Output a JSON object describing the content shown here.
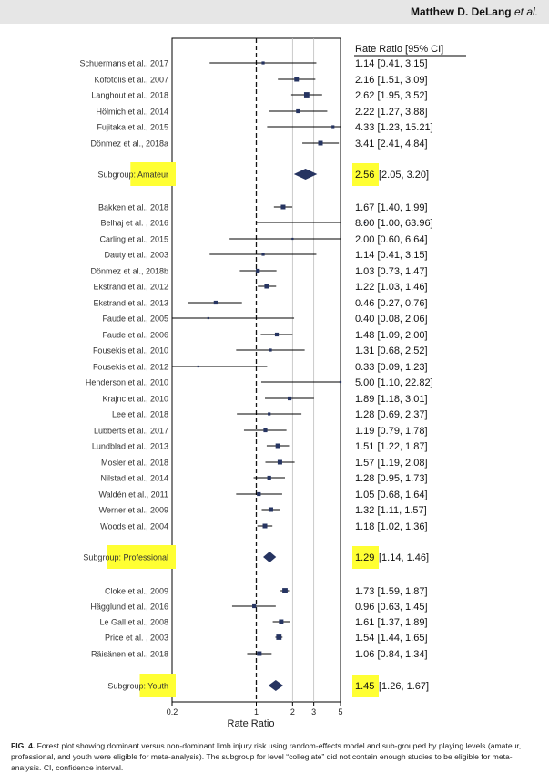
{
  "header": {
    "author": "Matthew D. DeLang",
    "etal": "et al."
  },
  "caption": {
    "label": "FIG. 4.",
    "text": "Forest plot showing dominant versus non-dominant limb injury risk using random-effects model and sub-grouped by playing levels (amateur, professional, and youth were eligible for meta-analysis). The subgroup for level “collegiate” did not contain enough studies to be eligible for meta-analysis. CI, confidence interval."
  },
  "colors": {
    "marker": "#263461",
    "highlight": "#ffff33",
    "refline": "#111111",
    "grid": "#bdbdbd"
  },
  "chart_data": {
    "type": "forest",
    "xlabel": "Rate Ratio",
    "xscale": "log",
    "xlim": [
      0.2,
      5
    ],
    "x_ticks": [
      0.2,
      1,
      2,
      3,
      5
    ],
    "x_tick_labels": [
      "0.2",
      "1",
      "2",
      "3",
      "5"
    ],
    "reference_line": 1,
    "column_header": "Rate Ratio [95% CI]",
    "rows": [
      {
        "kind": "study",
        "label": "Schuermans et al., 2017",
        "rr": 1.14,
        "lo": 0.41,
        "hi": 3.15,
        "text": "1.14 [0.41, 3.15]",
        "weight": 1
      },
      {
        "kind": "study",
        "label": "Kofotolis et al., 2007",
        "rr": 2.16,
        "lo": 1.51,
        "hi": 3.09,
        "text": "2.16 [1.51, 3.09]",
        "weight": 3
      },
      {
        "kind": "study",
        "label": "Langhout et al., 2018",
        "rr": 2.62,
        "lo": 1.95,
        "hi": 3.52,
        "text": "2.62 [1.95, 3.52]",
        "weight": 4
      },
      {
        "kind": "study",
        "label": "Hölmich et al., 2014",
        "rr": 2.22,
        "lo": 1.27,
        "hi": 3.88,
        "text": "2.22 [1.27, 3.88]",
        "weight": 2
      },
      {
        "kind": "study",
        "label": "Fujitaka et al., 2015",
        "rr": 4.33,
        "lo": 1.23,
        "hi": 15.21,
        "text": "4.33 [1.23, 15.21]",
        "weight": 1
      },
      {
        "kind": "study",
        "label": "Dönmez et al., 2018a",
        "rr": 3.41,
        "lo": 2.41,
        "hi": 4.84,
        "text": "3.41 [2.41, 4.84]",
        "weight": 3
      },
      {
        "kind": "subgroup",
        "label_prefix": "Subgroup: ",
        "label": "Amateur",
        "rr": 2.56,
        "lo": 2.05,
        "hi": 3.2,
        "rr_text": "2.56",
        "ci_text": "[2.05, 3.20]"
      },
      {
        "kind": "study",
        "label": "Bakken et al., 2018",
        "rr": 1.67,
        "lo": 1.4,
        "hi": 1.99,
        "text": "1.67 [1.40, 1.99]",
        "weight": 3
      },
      {
        "kind": "study",
        "label": "Belhaj et al. , 2016",
        "rr": 8.0,
        "lo": 1.0,
        "hi": 63.96,
        "text": "8.00 [1.00, 63.96]",
        "weight": 0
      },
      {
        "kind": "study",
        "label": "Carling et al., 2015",
        "rr": 2.0,
        "lo": 0.6,
        "hi": 6.64,
        "text": "2.00 [0.60, 6.64]",
        "weight": 0
      },
      {
        "kind": "study",
        "label": "Dauty et al., 2003",
        "rr": 1.14,
        "lo": 0.41,
        "hi": 3.15,
        "text": "1.14 [0.41, 3.15]",
        "weight": 1
      },
      {
        "kind": "study",
        "label": "Dönmez et al., 2018b",
        "rr": 1.03,
        "lo": 0.73,
        "hi": 1.47,
        "text": "1.03 [0.73, 1.47]",
        "weight": 2
      },
      {
        "kind": "study",
        "label": "Ekstrand et al., 2012",
        "rr": 1.22,
        "lo": 1.03,
        "hi": 1.46,
        "text": "1.22 [1.03, 1.46]",
        "weight": 3
      },
      {
        "kind": "study",
        "label": "Ekstrand et al., 2013",
        "rr": 0.46,
        "lo": 0.27,
        "hi": 0.76,
        "text": "0.46 [0.27, 0.76]",
        "weight": 2
      },
      {
        "kind": "study",
        "label": "Faude et al., 2005",
        "rr": 0.4,
        "lo": 0.08,
        "hi": 2.06,
        "text": "0.40 [0.08, 2.06]",
        "weight": 0
      },
      {
        "kind": "study",
        "label": "Faude et al., 2006",
        "rr": 1.48,
        "lo": 1.09,
        "hi": 2.0,
        "text": "1.48 [1.09, 2.00]",
        "weight": 2
      },
      {
        "kind": "study",
        "label": "Fousekis et al., 2010",
        "rr": 1.31,
        "lo": 0.68,
        "hi": 2.52,
        "text": "1.31 [0.68, 2.52]",
        "weight": 1
      },
      {
        "kind": "study",
        "label": "Fousekis et al., 2012",
        "rr": 0.33,
        "lo": 0.09,
        "hi": 1.23,
        "text": "0.33 [0.09, 1.23]",
        "weight": 0
      },
      {
        "kind": "study",
        "label": "Henderson et al., 2010",
        "rr": 5.0,
        "lo": 1.1,
        "hi": 22.82,
        "text": "5.00 [1.10, 22.82]",
        "weight": 0
      },
      {
        "kind": "study",
        "label": "Krajnc et al., 2010",
        "rr": 1.89,
        "lo": 1.18,
        "hi": 3.01,
        "text": "1.89 [1.18, 3.01]",
        "weight": 2
      },
      {
        "kind": "study",
        "label": "Lee et al., 2018",
        "rr": 1.28,
        "lo": 0.69,
        "hi": 2.37,
        "text": "1.28 [0.69, 2.37]",
        "weight": 1
      },
      {
        "kind": "study",
        "label": "Lubberts et al., 2017",
        "rr": 1.19,
        "lo": 0.79,
        "hi": 1.78,
        "text": "1.19 [0.79, 1.78]",
        "weight": 2
      },
      {
        "kind": "study",
        "label": "Lundblad et al., 2013",
        "rr": 1.51,
        "lo": 1.22,
        "hi": 1.87,
        "text": "1.51 [1.22, 1.87]",
        "weight": 3
      },
      {
        "kind": "study",
        "label": "Mosler et al., 2018",
        "rr": 1.57,
        "lo": 1.19,
        "hi": 2.08,
        "text": "1.57 [1.19, 2.08]",
        "weight": 3
      },
      {
        "kind": "study",
        "label": "Nilstad et al., 2014",
        "rr": 1.28,
        "lo": 0.95,
        "hi": 1.73,
        "text": "1.28 [0.95, 1.73]",
        "weight": 2
      },
      {
        "kind": "study",
        "label": "Waldén et al., 2011",
        "rr": 1.05,
        "lo": 0.68,
        "hi": 1.64,
        "text": "1.05 [0.68, 1.64]",
        "weight": 2
      },
      {
        "kind": "study",
        "label": "Werner et al., 2009",
        "rr": 1.32,
        "lo": 1.11,
        "hi": 1.57,
        "text": "1.32 [1.11, 1.57]",
        "weight": 3
      },
      {
        "kind": "study",
        "label": "Woods et al., 2004",
        "rr": 1.18,
        "lo": 1.02,
        "hi": 1.36,
        "text": "1.18 [1.02, 1.36]",
        "weight": 3
      },
      {
        "kind": "subgroup",
        "label_prefix": "Subgroup: ",
        "label": "Professional",
        "rr": 1.29,
        "lo": 1.14,
        "hi": 1.46,
        "rr_text": "1.29",
        "ci_text": "[1.14, 1.46]"
      },
      {
        "kind": "study",
        "label": "Cloke et al., 2009",
        "rr": 1.73,
        "lo": 1.59,
        "hi": 1.87,
        "text": "1.73 [1.59, 1.87]",
        "weight": 4
      },
      {
        "kind": "study",
        "label": "Hägglund et al., 2016",
        "rr": 0.96,
        "lo": 0.63,
        "hi": 1.45,
        "text": "0.96 [0.63, 1.45]",
        "weight": 2
      },
      {
        "kind": "study",
        "label": "Le Gall et al., 2008",
        "rr": 1.61,
        "lo": 1.37,
        "hi": 1.89,
        "text": "1.61 [1.37, 1.89]",
        "weight": 3
      },
      {
        "kind": "study",
        "label": "Price et al. , 2003",
        "rr": 1.54,
        "lo": 1.44,
        "hi": 1.65,
        "text": "1.54 [1.44, 1.65]",
        "weight": 4
      },
      {
        "kind": "study",
        "label": "Räisänen et al., 2018",
        "rr": 1.06,
        "lo": 0.84,
        "hi": 1.34,
        "text": "1.06 [0.84, 1.34]",
        "weight": 3
      },
      {
        "kind": "subgroup",
        "label_prefix": "Subgroup: ",
        "label": "Youth",
        "rr": 1.45,
        "lo": 1.26,
        "hi": 1.67,
        "rr_text": "1.45",
        "ci_text": "[1.26, 1.67]"
      }
    ]
  }
}
